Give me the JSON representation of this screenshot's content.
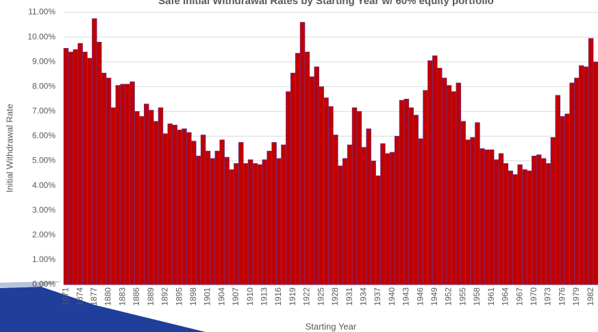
{
  "chart_data": {
    "type": "bar",
    "title": "Safe Initial Withdrawal Rates by Starting Year w/ 60% equity portfolio",
    "x_label": "Starting Year",
    "y_label": "Initial Withdrawal Rate",
    "categories": [
      "1871",
      null,
      null,
      "1874",
      null,
      null,
      "1877",
      null,
      null,
      "1880",
      null,
      null,
      "1883",
      null,
      null,
      "1886",
      null,
      null,
      "1889",
      null,
      null,
      "1892",
      null,
      null,
      "1895",
      null,
      null,
      "1898",
      null,
      null,
      "1901",
      null,
      null,
      "1904",
      null,
      null,
      "1907",
      null,
      null,
      "1910",
      null,
      null,
      "1913",
      null,
      null,
      "1916",
      null,
      null,
      "1919",
      null,
      null,
      "1922",
      null,
      null,
      "1925",
      null,
      null,
      "1928",
      null,
      null,
      "1931",
      null,
      null,
      "1934",
      null,
      null,
      "1937",
      null,
      null,
      "1940",
      null,
      null,
      "1943",
      null,
      null,
      "1946",
      null,
      null,
      "1949",
      null,
      null,
      "1952",
      null,
      null,
      "1955",
      null,
      null,
      "1958",
      null,
      null,
      "1961",
      null,
      null,
      "1964",
      null,
      null,
      "1967",
      null,
      null,
      "1970",
      null,
      null,
      "1973",
      null,
      null,
      "1976",
      null,
      null,
      "1979",
      null,
      null,
      "1982",
      null
    ],
    "values": [
      9.55,
      9.4,
      9.5,
      9.75,
      9.4,
      9.15,
      10.75,
      9.8,
      8.55,
      8.35,
      7.15,
      8.05,
      8.1,
      8.1,
      8.2,
      7.0,
      6.8,
      7.3,
      7.05,
      6.6,
      7.15,
      6.1,
      6.5,
      6.45,
      6.25,
      6.3,
      6.15,
      5.8,
      5.2,
      6.05,
      5.4,
      5.1,
      5.4,
      5.85,
      5.15,
      4.65,
      4.9,
      5.75,
      4.9,
      5.05,
      4.9,
      4.85,
      5.05,
      5.4,
      5.75,
      5.1,
      5.65,
      7.8,
      8.55,
      9.35,
      10.6,
      9.4,
      8.4,
      8.8,
      8.0,
      7.55,
      7.2,
      6.05,
      4.8,
      5.1,
      5.65,
      7.15,
      7.0,
      5.55,
      6.3,
      5.0,
      4.4,
      5.7,
      5.3,
      5.35,
      6.0,
      7.45,
      7.5,
      7.15,
      6.85,
      5.9,
      7.85,
      9.05,
      9.25,
      8.75,
      8.35,
      8.05,
      7.8,
      8.15,
      6.6,
      5.85,
      5.95,
      6.55,
      5.5,
      5.45,
      5.45,
      5.05,
      5.3,
      4.9,
      4.6,
      4.45,
      4.85,
      4.65,
      4.6,
      5.2,
      5.25,
      5.1,
      4.9,
      5.95,
      7.65,
      6.8,
      6.9,
      8.15,
      8.35,
      8.85,
      8.8,
      9.95,
      9.0
    ],
    "color": "#c00000",
    "ylim": [
      0,
      11
    ],
    "yticks": [
      {
        "value": 0,
        "label": "0.00%"
      },
      {
        "value": 1,
        "label": "1.00%"
      },
      {
        "value": 2,
        "label": "2.00%"
      },
      {
        "value": 3,
        "label": "3.00%"
      },
      {
        "value": 4,
        "label": "4.00%"
      },
      {
        "value": 5,
        "label": "5.00%"
      },
      {
        "value": 6,
        "label": "6.00%"
      },
      {
        "value": 7,
        "label": "7.00%"
      },
      {
        "value": 8,
        "label": "8.00%"
      },
      {
        "value": 9,
        "label": "9.00%"
      },
      {
        "value": 10,
        "label": "10.00%"
      },
      {
        "value": 11,
        "label": "11.00%"
      }
    ],
    "grid": true
  }
}
